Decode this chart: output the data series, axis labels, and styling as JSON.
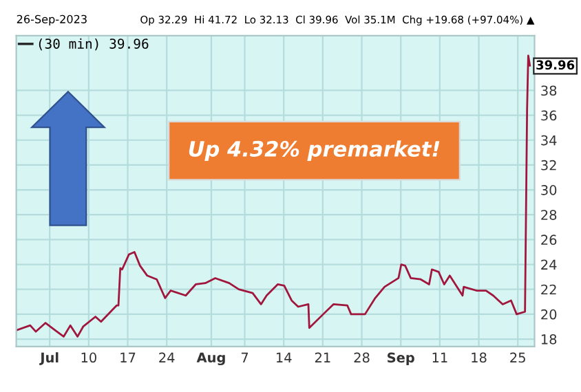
{
  "chart_data": {
    "type": "line",
    "subtitle": "26-Sep-2023",
    "annotations": [
      "Op 32.29  Hi 41.72  Lo 32.13  Cl 39.96  Vol 35.1M  Chg +19.68 (+97.04%) ▲",
      {
        "text": "39.96",
        "x": "2023-09-27T04:00",
        "y": 39.96
      },
      "Up 4.32% premarket!"
    ],
    "x": [
      "2023-06-27T00:00",
      "2023-06-29T12:00",
      "2023-06-30T12:00",
      "2023-07-02T06:00",
      "2023-07-04T00:00",
      "2023-07-05T12:00",
      "2023-07-06T17:00",
      "2023-07-08T00:00",
      "2023-07-09T00:00",
      "2023-07-11T05:00",
      "2023-07-12T05:00",
      "2023-07-15T00:00",
      "2023-07-15T08:00",
      "2023-07-15T16:00",
      "2023-07-16T00:00",
      "2023-07-17T05:00",
      "2023-07-18T05:00",
      "2023-07-19T05:00",
      "2023-07-20T12:00",
      "2023-07-22T05:00",
      "2023-07-23T17:00",
      "2023-07-24T17:00",
      "2023-07-27T10:00",
      "2023-07-29T05:00",
      "2023-07-30T22:00",
      "2023-08-01T17:00",
      "2023-08-04T05:00",
      "2023-08-05T22:00",
      "2023-08-08T10:00",
      "2023-08-09T22:00",
      "2023-08-10T22:00",
      "2023-08-12T22:00",
      "2023-08-14T02:00",
      "2023-08-15T10:00",
      "2023-08-16T14:00",
      "2023-08-18T10:00",
      "2023-08-18T14:00",
      "2023-08-21T02:00",
      "2023-08-22T22:00",
      "2023-08-25T10:00",
      "2023-08-26T02:00",
      "2023-08-28T14:00",
      "2023-08-30T10:00",
      "2023-09-01T02:00",
      "2023-09-03T14:00",
      "2023-09-04T02:00",
      "2023-09-04T19:00",
      "2023-09-05T19:00",
      "2023-09-07T14:00",
      "2023-09-09T02:00",
      "2023-09-09T14:00",
      "2023-09-10T19:00",
      "2023-09-11T19:00",
      "2023-09-12T19:00",
      "2023-09-15T02:00",
      "2023-09-15T07:00",
      "2023-09-17T14:00",
      "2023-09-19T07:00",
      "2023-09-20T14:00",
      "2023-09-22T07:00",
      "2023-09-23T19:00",
      "2023-09-24T19:00",
      "2023-09-26T07:00",
      "2023-09-26T16:00",
      "2023-09-26T21:00",
      "2023-09-27T04:00"
    ],
    "series": [
      {
        "name": "(30 min) 39.96",
        "color": "#a0163c",
        "values": [
          18.7,
          19.1,
          18.6,
          19.3,
          18.7,
          18.2,
          19.1,
          18.2,
          19.0,
          19.8,
          19.4,
          20.7,
          20.7,
          23.7,
          23.6,
          24.8,
          25.0,
          23.9,
          23.1,
          22.8,
          21.3,
          21.9,
          21.5,
          22.4,
          22.5,
          22.9,
          22.5,
          22.0,
          21.7,
          20.8,
          21.5,
          22.4,
          22.3,
          21.1,
          20.6,
          20.8,
          18.9,
          20.0,
          20.8,
          20.7,
          20.0,
          20.0,
          21.3,
          22.2,
          22.9,
          24.0,
          23.9,
          22.9,
          22.8,
          22.4,
          23.6,
          23.4,
          22.4,
          23.1,
          21.5,
          22.2,
          21.9,
          21.9,
          21.5,
          20.8,
          21.1,
          20.0,
          20.2,
          36.5,
          40.8,
          40.0
        ]
      }
    ],
    "xlim": [
      "2023-06-27",
      "2023-09-28"
    ],
    "xticks": [
      {
        "value": "2023-07-03",
        "label": "Jul"
      },
      {
        "value": "2023-07-10",
        "label": "10"
      },
      {
        "value": "2023-07-17",
        "label": "17"
      },
      {
        "value": "2023-07-24",
        "label": "24"
      },
      {
        "value": "2023-08-01",
        "label": "Aug"
      },
      {
        "value": "2023-08-07",
        "label": "7"
      },
      {
        "value": "2023-08-14",
        "label": "14"
      },
      {
        "value": "2023-08-21",
        "label": "21"
      },
      {
        "value": "2023-08-28",
        "label": "28"
      },
      {
        "value": "2023-09-04",
        "label": "Sep"
      },
      {
        "value": "2023-09-11",
        "label": "11"
      },
      {
        "value": "2023-09-18",
        "label": "18"
      },
      {
        "value": "2023-09-25",
        "label": "25"
      }
    ],
    "ylim": [
      17.4,
      42.4
    ],
    "yticks": [
      18,
      20,
      22,
      24,
      26,
      28,
      30,
      32,
      34,
      36,
      38
    ],
    "grid": true,
    "legend": "top left",
    "line_style": "solid",
    "marker": "none"
  }
}
